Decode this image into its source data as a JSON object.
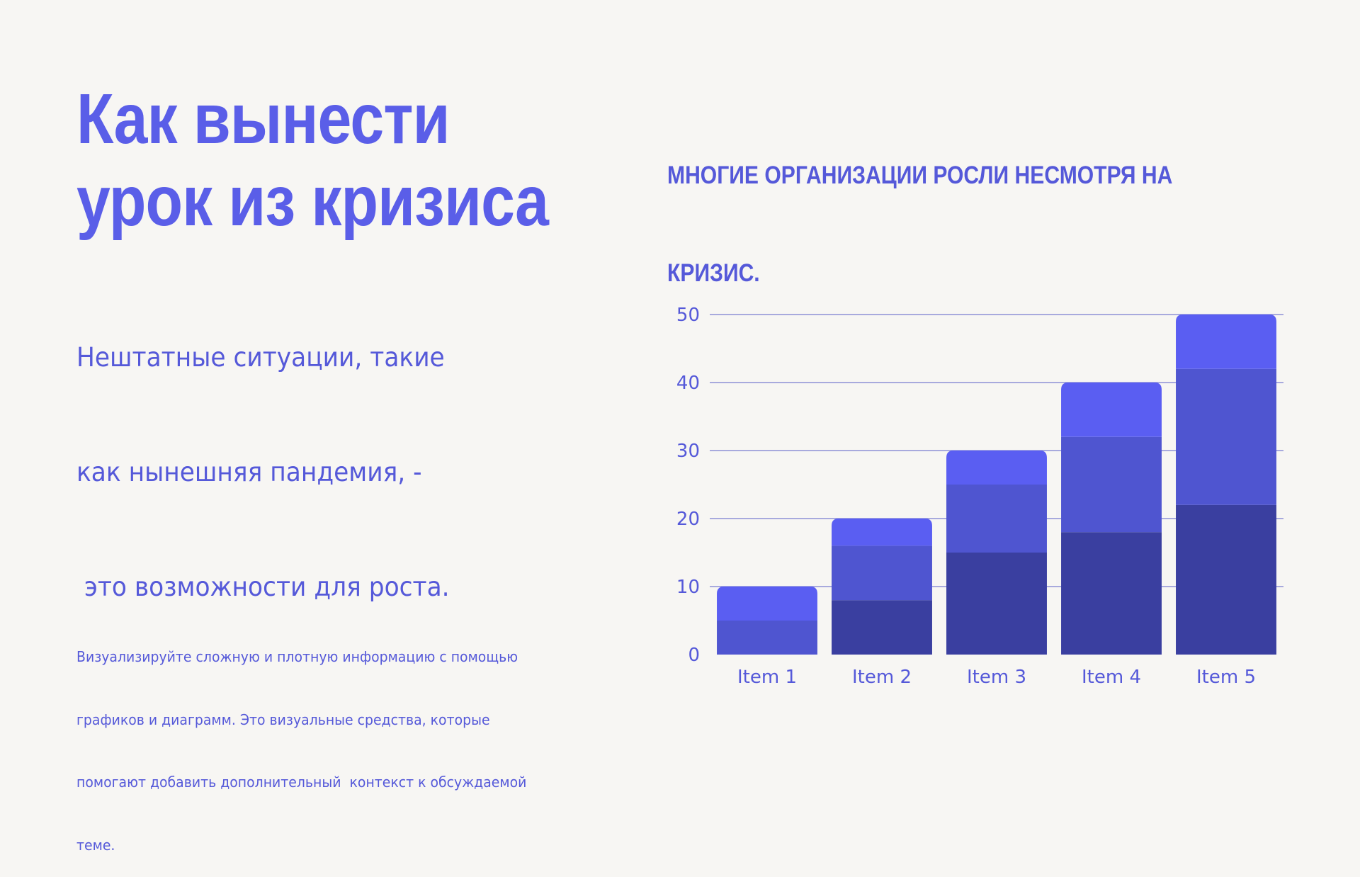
{
  "colors": {
    "accent": "#5a5ee8",
    "text": "#5559d9",
    "background": "#f7f6f3",
    "grid": "#7a7ed0",
    "series": [
      "#3a3fa0",
      "#4f55d0",
      "#5a5ef2"
    ]
  },
  "slide": {
    "title_lines": [
      "Как вынести",
      "урок из кризиса"
    ],
    "subtitle_lines": [
      "Нештатные ситуации, такие",
      "как нынешняя пандемия, -",
      " это возможности для роста."
    ],
    "caption_lines": [
      "Визуализируйте сложную и плотную информацию с помощью",
      "графиков и диаграмм. Это визуальные средства, которые",
      "помогают добавить дополнительный  контекст к обсуждаемой",
      "теме."
    ]
  },
  "chart_data": {
    "type": "bar",
    "stacked": true,
    "title_lines": [
      "МНОГИЕ ОРГАНИЗАЦИИ РОСЛИ НЕСМОТРЯ НА",
      "КРИЗИС."
    ],
    "categories": [
      "Item 1",
      "Item 2",
      "Item 3",
      "Item 4",
      "Item 5"
    ],
    "series": [
      {
        "values": [
          0,
          8,
          15,
          18,
          22
        ]
      },
      {
        "values": [
          5,
          8,
          10,
          14,
          20
        ]
      },
      {
        "values": [
          5,
          4,
          5,
          8,
          8
        ]
      }
    ],
    "yticks": [
      "0",
      "10",
      "20",
      "30",
      "40",
      "50"
    ],
    "ylim": [
      0,
      50
    ],
    "grid": true,
    "legend": "none",
    "xlabel": "",
    "ylabel": ""
  }
}
